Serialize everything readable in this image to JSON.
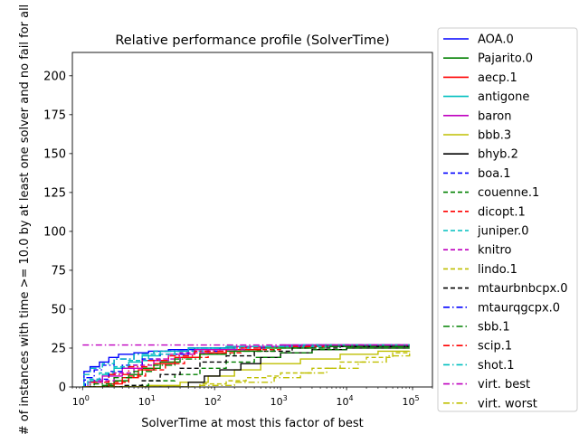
{
  "chart_data": {
    "type": "line",
    "title": "Relative performance profile (SolverTime)",
    "xlabel": "SolverTime at most this factor of best",
    "ylabel": "# of instances with time >= 10.0 by at least one solver and no fail for all",
    "x_scale": "log",
    "xlim": [
      0.7,
      200000
    ],
    "ylim": [
      0,
      215
    ],
    "x_ticks": [
      1,
      10,
      100,
      1000,
      10000,
      100000
    ],
    "x_tick_labels": [
      {
        "base": "10",
        "exp": "0"
      },
      {
        "base": "10",
        "exp": "1"
      },
      {
        "base": "10",
        "exp": "2"
      },
      {
        "base": "10",
        "exp": "3"
      },
      {
        "base": "10",
        "exp": "4"
      },
      {
        "base": "10",
        "exp": "5"
      }
    ],
    "y_ticks": [
      0,
      25,
      50,
      75,
      100,
      125,
      150,
      175,
      200
    ],
    "y_tick_labels": [
      "0",
      "25",
      "50",
      "75",
      "100",
      "125",
      "150",
      "175",
      "200"
    ],
    "legend_position": "outside-right",
    "grid": false,
    "series": [
      {
        "name": "AOA.0",
        "color": "#0000ff",
        "dash": "solid",
        "points": [
          [
            1,
            0
          ],
          [
            1.05,
            10
          ],
          [
            1.3,
            13
          ],
          [
            1.8,
            16
          ],
          [
            2.5,
            19
          ],
          [
            3.5,
            21
          ],
          [
            6,
            22
          ],
          [
            10,
            23
          ],
          [
            20,
            24
          ],
          [
            50,
            25
          ],
          [
            150,
            26
          ],
          [
            1000,
            27
          ],
          [
            90000,
            27
          ]
        ]
      },
      {
        "name": "Pajarito.0",
        "color": "#008000",
        "dash": "solid",
        "points": [
          [
            1,
            0
          ],
          [
            2,
            1
          ],
          [
            3,
            4
          ],
          [
            5,
            8
          ],
          [
            8,
            12
          ],
          [
            15,
            16
          ],
          [
            30,
            19
          ],
          [
            60,
            21
          ],
          [
            150,
            23
          ],
          [
            500,
            25
          ],
          [
            3000,
            26
          ],
          [
            90000,
            26
          ]
        ]
      },
      {
        "name": "aecp.1",
        "color": "#ff0000",
        "dash": "solid",
        "points": [
          [
            1,
            0
          ],
          [
            2.5,
            2
          ],
          [
            4,
            6
          ],
          [
            7,
            11
          ],
          [
            12,
            15
          ],
          [
            25,
            19
          ],
          [
            60,
            22
          ],
          [
            150,
            24
          ],
          [
            500,
            26
          ],
          [
            5000,
            27
          ],
          [
            90000,
            27
          ]
        ]
      },
      {
        "name": "antigone",
        "color": "#00bfbf",
        "dash": "solid",
        "points": [
          [
            1,
            0
          ],
          [
            1.3,
            4
          ],
          [
            2,
            8
          ],
          [
            3,
            12
          ],
          [
            5,
            16
          ],
          [
            8,
            20
          ],
          [
            15,
            23
          ],
          [
            40,
            25
          ],
          [
            150,
            26
          ],
          [
            1000,
            26
          ],
          [
            3000,
            27
          ],
          [
            90000,
            27
          ]
        ]
      },
      {
        "name": "baron",
        "color": "#bf00bf",
        "dash": "solid",
        "points": [
          [
            1,
            0
          ],
          [
            1.2,
            3
          ],
          [
            2,
            7
          ],
          [
            4,
            12
          ],
          [
            8,
            17
          ],
          [
            20,
            21
          ],
          [
            50,
            24
          ],
          [
            200,
            26
          ],
          [
            1000,
            27
          ],
          [
            90000,
            27
          ]
        ]
      },
      {
        "name": "bbb.3",
        "color": "#bfbf00",
        "dash": "solid",
        "points": [
          [
            1,
            0
          ],
          [
            10,
            1
          ],
          [
            30,
            3
          ],
          [
            80,
            7
          ],
          [
            200,
            11
          ],
          [
            500,
            15
          ],
          [
            2000,
            18
          ],
          [
            8000,
            21
          ],
          [
            30000,
            23
          ],
          [
            90000,
            23
          ]
        ]
      },
      {
        "name": "bhyb.2",
        "color": "#000000",
        "dash": "solid",
        "points": [
          [
            1,
            0
          ],
          [
            25,
            0
          ],
          [
            40,
            3
          ],
          [
            70,
            7
          ],
          [
            120,
            11
          ],
          [
            250,
            15
          ],
          [
            500,
            19
          ],
          [
            1000,
            22
          ],
          [
            3000,
            24
          ],
          [
            10000,
            25
          ],
          [
            90000,
            25
          ]
        ]
      },
      {
        "name": "boa.1",
        "color": "#0000ff",
        "dash": "dashed",
        "points": [
          [
            1,
            0
          ],
          [
            1.5,
            5
          ],
          [
            2.5,
            10
          ],
          [
            4,
            14
          ],
          [
            8,
            18
          ],
          [
            15,
            21
          ],
          [
            40,
            23
          ],
          [
            120,
            25
          ],
          [
            600,
            26
          ],
          [
            3000,
            27
          ],
          [
            90000,
            27
          ]
        ]
      },
      {
        "name": "couenne.1",
        "color": "#008000",
        "dash": "dashed",
        "points": [
          [
            1,
            0
          ],
          [
            5,
            1
          ],
          [
            10,
            4
          ],
          [
            25,
            8
          ],
          [
            60,
            12
          ],
          [
            150,
            16
          ],
          [
            400,
            19
          ],
          [
            1000,
            22
          ],
          [
            3000,
            24
          ],
          [
            10000,
            25
          ],
          [
            90000,
            25
          ]
        ]
      },
      {
        "name": "dicopt.1",
        "color": "#ff0000",
        "dash": "dashed",
        "points": [
          [
            1,
            0
          ],
          [
            3,
            3
          ],
          [
            5,
            7
          ],
          [
            9,
            11
          ],
          [
            18,
            15
          ],
          [
            35,
            19
          ],
          [
            80,
            22
          ],
          [
            250,
            24
          ],
          [
            1000,
            26
          ],
          [
            90000,
            26
          ]
        ]
      },
      {
        "name": "juniper.0",
        "color": "#00bfbf",
        "dash": "dashed",
        "points": [
          [
            1,
            0
          ],
          [
            1.2,
            5
          ],
          [
            1.8,
            9
          ],
          [
            3,
            13
          ],
          [
            5,
            17
          ],
          [
            10,
            21
          ],
          [
            25,
            23
          ],
          [
            80,
            25
          ],
          [
            400,
            26
          ],
          [
            90000,
            26
          ]
        ]
      },
      {
        "name": "knitro",
        "color": "#bf00bf",
        "dash": "dashed",
        "points": [
          [
            1,
            0
          ],
          [
            1.5,
            4
          ],
          [
            3,
            9
          ],
          [
            6,
            14
          ],
          [
            12,
            18
          ],
          [
            30,
            22
          ],
          [
            80,
            24
          ],
          [
            300,
            26
          ],
          [
            2000,
            27
          ],
          [
            90000,
            27
          ]
        ]
      },
      {
        "name": "lindo.1",
        "color": "#bfbf00",
        "dash": "dashed",
        "points": [
          [
            1,
            0
          ],
          [
            20,
            0
          ],
          [
            60,
            2
          ],
          [
            150,
            4
          ],
          [
            300,
            6
          ],
          [
            600,
            7
          ],
          [
            1000,
            9
          ],
          [
            3000,
            12
          ],
          [
            8000,
            16
          ],
          [
            20000,
            19
          ],
          [
            50000,
            22
          ],
          [
            90000,
            23
          ]
        ]
      },
      {
        "name": "mtaurbnbcpx.0",
        "color": "#000000",
        "dash": "dashed",
        "points": [
          [
            1,
            0
          ],
          [
            4,
            1
          ],
          [
            8,
            4
          ],
          [
            15,
            8
          ],
          [
            30,
            12
          ],
          [
            60,
            16
          ],
          [
            150,
            20
          ],
          [
            400,
            23
          ],
          [
            1500,
            25
          ],
          [
            8000,
            26
          ],
          [
            90000,
            26
          ]
        ]
      },
      {
        "name": "mtaurqgcpx.0",
        "color": "#0000ff",
        "dash": "dashdot",
        "points": [
          [
            1,
            0
          ],
          [
            1.1,
            6
          ],
          [
            1.5,
            11
          ],
          [
            2,
            14
          ],
          [
            3,
            18
          ],
          [
            6,
            21
          ],
          [
            12,
            23
          ],
          [
            40,
            25
          ],
          [
            200,
            26
          ],
          [
            2000,
            27
          ],
          [
            90000,
            27
          ]
        ]
      },
      {
        "name": "sbb.1",
        "color": "#008000",
        "dash": "dashdot",
        "points": [
          [
            1,
            0
          ],
          [
            1.5,
            2
          ],
          [
            3,
            6
          ],
          [
            6,
            10
          ],
          [
            12,
            14
          ],
          [
            25,
            18
          ],
          [
            60,
            21
          ],
          [
            200,
            23
          ],
          [
            800,
            25
          ],
          [
            5000,
            26
          ],
          [
            90000,
            26
          ]
        ]
      },
      {
        "name": "scip.1",
        "color": "#ff0000",
        "dash": "dashdot",
        "points": [
          [
            1,
            0
          ],
          [
            1.3,
            3
          ],
          [
            2.5,
            8
          ],
          [
            5,
            13
          ],
          [
            10,
            17
          ],
          [
            20,
            20
          ],
          [
            50,
            23
          ],
          [
            150,
            25
          ],
          [
            600,
            26
          ],
          [
            3000,
            27
          ],
          [
            90000,
            27
          ]
        ]
      },
      {
        "name": "shot.1",
        "color": "#00bfbf",
        "dash": "dashdot",
        "points": [
          [
            1,
            0
          ],
          [
            1.05,
            8
          ],
          [
            1.3,
            12
          ],
          [
            2,
            15
          ],
          [
            3,
            18
          ],
          [
            6,
            21
          ],
          [
            12,
            23
          ],
          [
            40,
            25
          ],
          [
            200,
            26
          ],
          [
            1500,
            27
          ],
          [
            90000,
            27
          ]
        ]
      },
      {
        "name": "virt. best",
        "color": "#bf00bf",
        "dash": "dashdot",
        "points": [
          [
            1,
            27
          ],
          [
            90000,
            27
          ]
        ]
      },
      {
        "name": "virt. worst",
        "color": "#bfbf00",
        "dash": "dashdot",
        "points": [
          [
            1,
            0
          ],
          [
            20,
            0
          ],
          [
            60,
            1
          ],
          [
            200,
            3
          ],
          [
            800,
            6
          ],
          [
            2000,
            9
          ],
          [
            5000,
            12
          ],
          [
            15000,
            16
          ],
          [
            40000,
            20
          ],
          [
            90000,
            23
          ]
        ]
      }
    ]
  }
}
